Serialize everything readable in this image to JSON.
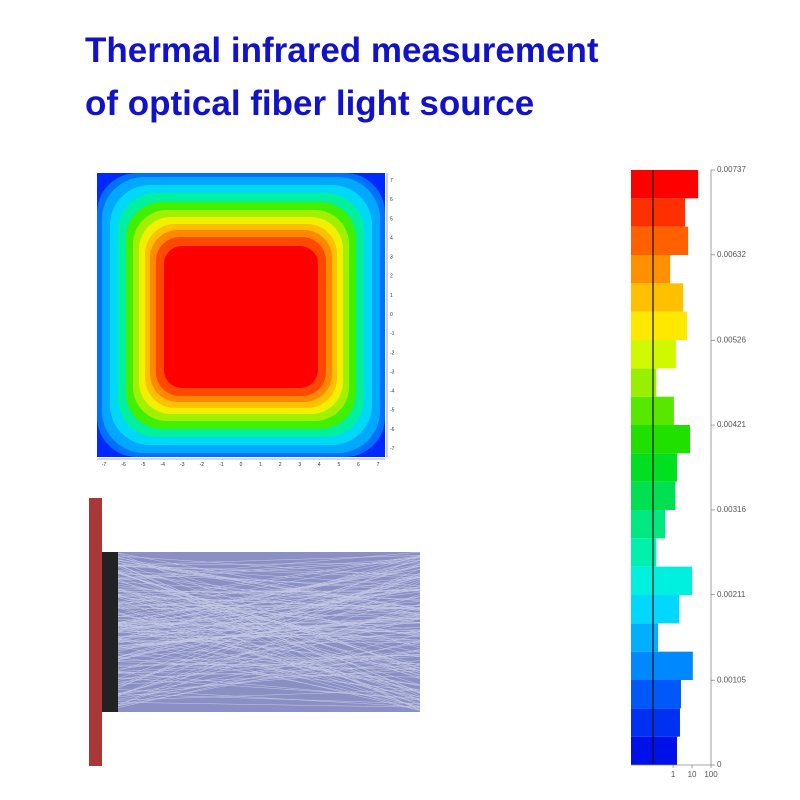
{
  "header": {
    "title": [
      "Thermal infrared measurement",
      "of optical fiber light source"
    ]
  },
  "heatmap": {
    "xticks": [
      -7,
      -6,
      -5,
      -4,
      -3,
      -2,
      -1,
      0,
      1,
      2,
      3,
      4,
      5,
      6,
      7
    ],
    "yticks": [
      7,
      6,
      5,
      4,
      3,
      2,
      1,
      0,
      -1,
      -2,
      -3,
      -4,
      -5,
      -6,
      -7
    ]
  },
  "chart_data": {
    "type": "histogram",
    "ylim": [
      0,
      0.00737
    ],
    "yticks": [
      0,
      0.00105,
      0.00211,
      0.00316,
      0.00421,
      0.00526,
      0.00632,
      0.00737
    ],
    "xlim": [
      0.006,
      100
    ],
    "xticks": [
      1,
      10,
      100
    ],
    "log_x": true,
    "values": [
      1.6,
      2.3,
      2.6,
      11,
      0.16,
      2.1,
      10,
      0.13,
      0.38,
      1.3,
      1.6,
      7.8,
      1.1,
      0.13,
      1.4,
      5.5,
      3.4,
      0.7,
      6.2,
      4.3,
      21
    ],
    "colors": [
      "#0010e8",
      "#0030f0",
      "#0058f8",
      "#0088ff",
      "#00b0ff",
      "#00d8ff",
      "#00f0e0",
      "#00f0b0",
      "#00e880",
      "#00e050",
      "#00e020",
      "#20e000",
      "#58e800",
      "#98f000",
      "#d0f800",
      "#ffe800",
      "#ffc000",
      "#ff9000",
      "#ff6000",
      "#ff3000",
      "#ff0000"
    ]
  }
}
